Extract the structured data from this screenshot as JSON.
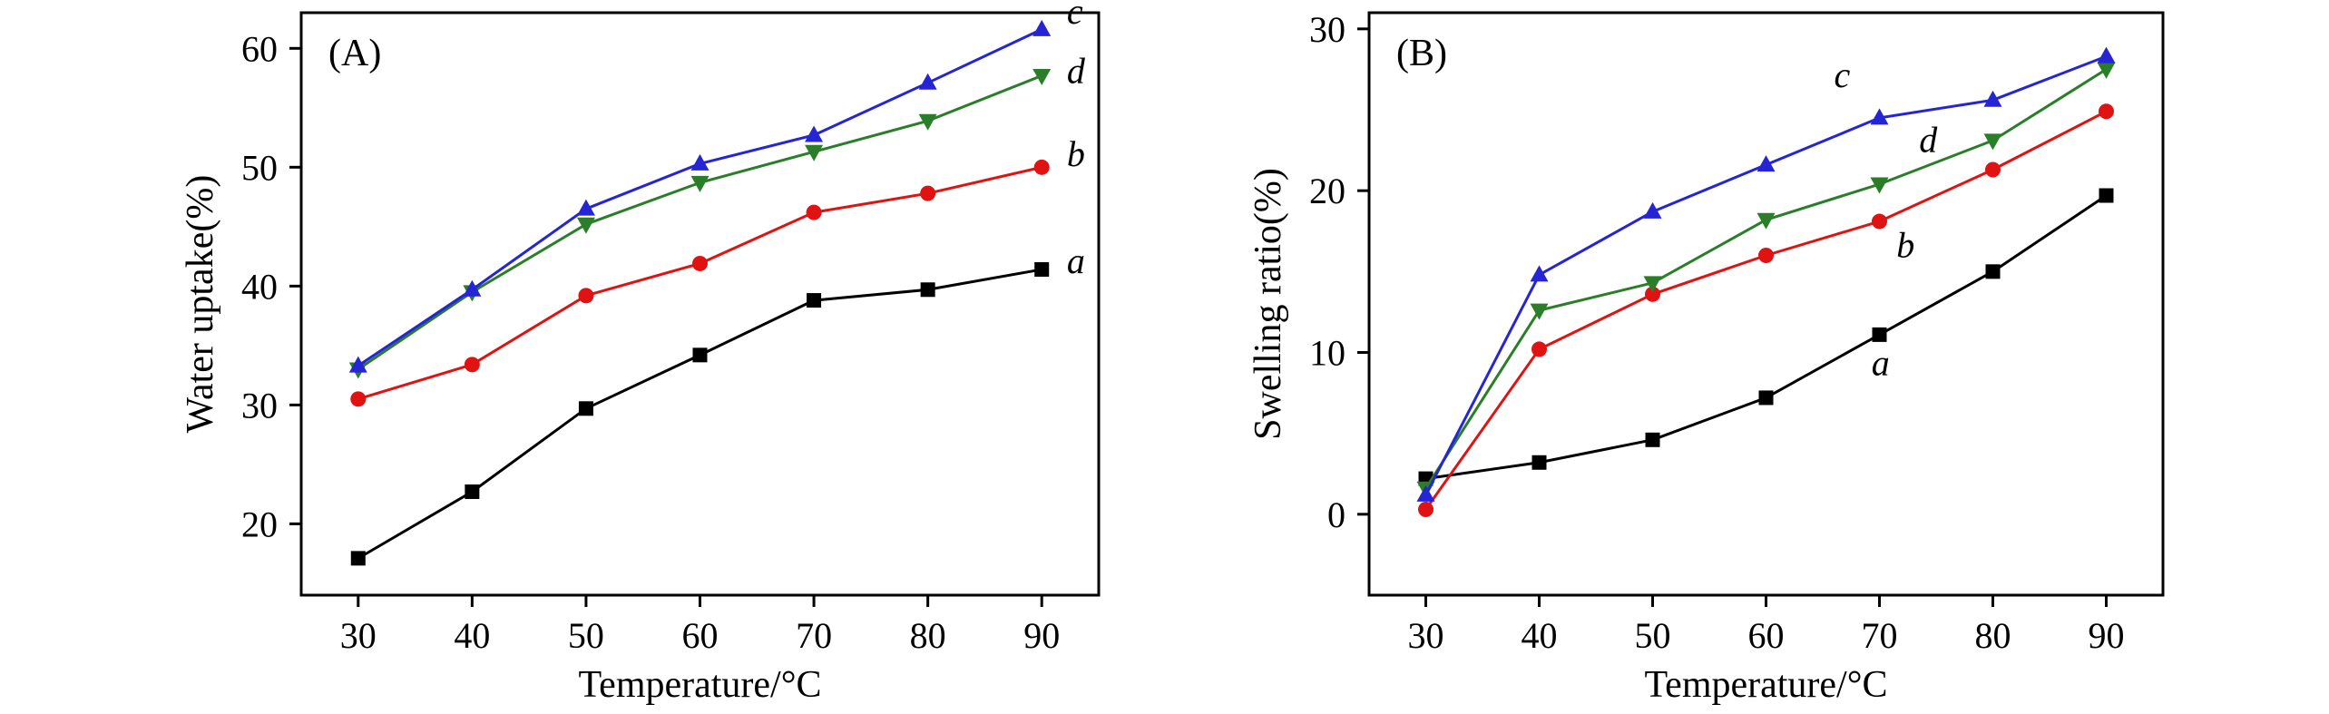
{
  "figure": {
    "background": "#ffffff",
    "text_color": "#000000"
  },
  "chart_data": [
    {
      "type": "line",
      "panel_label": "(A)",
      "xlabel": "Temperature/°C",
      "ylabel": "Water uptake(%)",
      "xlim": [
        25,
        95
      ],
      "ylim": [
        14,
        63
      ],
      "xticks": [
        30,
        40,
        50,
        60,
        70,
        80,
        90
      ],
      "yticks": [
        20,
        30,
        40,
        50,
        60
      ],
      "x": [
        30,
        40,
        50,
        60,
        70,
        80,
        90
      ],
      "grid": false,
      "legend": "inline curve labels",
      "series": [
        {
          "name": "a",
          "label": "a",
          "marker": "square",
          "color": "#000000",
          "values": [
            17.1,
            22.7,
            29.7,
            34.2,
            38.8,
            39.7,
            41.4
          ],
          "label_at": [
            92.2,
            41.1
          ]
        },
        {
          "name": "b",
          "label": "b",
          "marker": "circle",
          "color": "#e01212",
          "values": [
            30.5,
            33.4,
            39.2,
            41.9,
            46.2,
            47.8,
            50.0
          ],
          "label_at": [
            92.2,
            50.1
          ]
        },
        {
          "name": "d",
          "label": "d",
          "marker": "triangle-down",
          "color": "#2a7e2a",
          "values": [
            33.0,
            39.5,
            45.2,
            48.7,
            51.3,
            53.9,
            57.7
          ],
          "label_at": [
            92.2,
            57.1
          ]
        },
        {
          "name": "c",
          "label": "c",
          "marker": "triangle-up",
          "color": "#2525d5",
          "values": [
            33.3,
            39.7,
            46.5,
            50.3,
            52.7,
            57.1,
            61.6
          ],
          "label_at": [
            92.2,
            62.1
          ]
        }
      ]
    },
    {
      "type": "line",
      "panel_label": "(B)",
      "xlabel": "Temperature/°C",
      "ylabel": "Swelling ratio(%)",
      "xlim": [
        25,
        95
      ],
      "ylim": [
        -5,
        31
      ],
      "xticks": [
        30,
        40,
        50,
        60,
        70,
        80,
        90
      ],
      "yticks": [
        0,
        10,
        20,
        30
      ],
      "x": [
        30,
        40,
        50,
        60,
        70,
        80,
        90
      ],
      "grid": false,
      "legend": "inline curve labels",
      "series": [
        {
          "name": "a",
          "label": "a",
          "marker": "square",
          "color": "#000000",
          "values": [
            2.2,
            3.2,
            4.6,
            7.2,
            11.1,
            15.0,
            19.7
          ],
          "label_at": [
            69.3,
            8.6
          ]
        },
        {
          "name": "b",
          "label": "b",
          "marker": "circle",
          "color": "#e01212",
          "values": [
            0.3,
            10.2,
            13.6,
            16.0,
            18.1,
            21.3,
            24.9
          ],
          "label_at": [
            71.5,
            15.9
          ]
        },
        {
          "name": "d",
          "label": "d",
          "marker": "triangle-down",
          "color": "#2a7e2a",
          "values": [
            1.6,
            12.6,
            14.3,
            18.2,
            20.4,
            23.1,
            27.5
          ],
          "label_at": [
            73.5,
            22.4
          ]
        },
        {
          "name": "c",
          "label": "c",
          "marker": "triangle-up",
          "color": "#2525d5",
          "values": [
            1.2,
            14.8,
            18.7,
            21.6,
            24.5,
            25.6,
            28.3
          ],
          "label_at": [
            66.0,
            26.4
          ]
        }
      ]
    }
  ]
}
